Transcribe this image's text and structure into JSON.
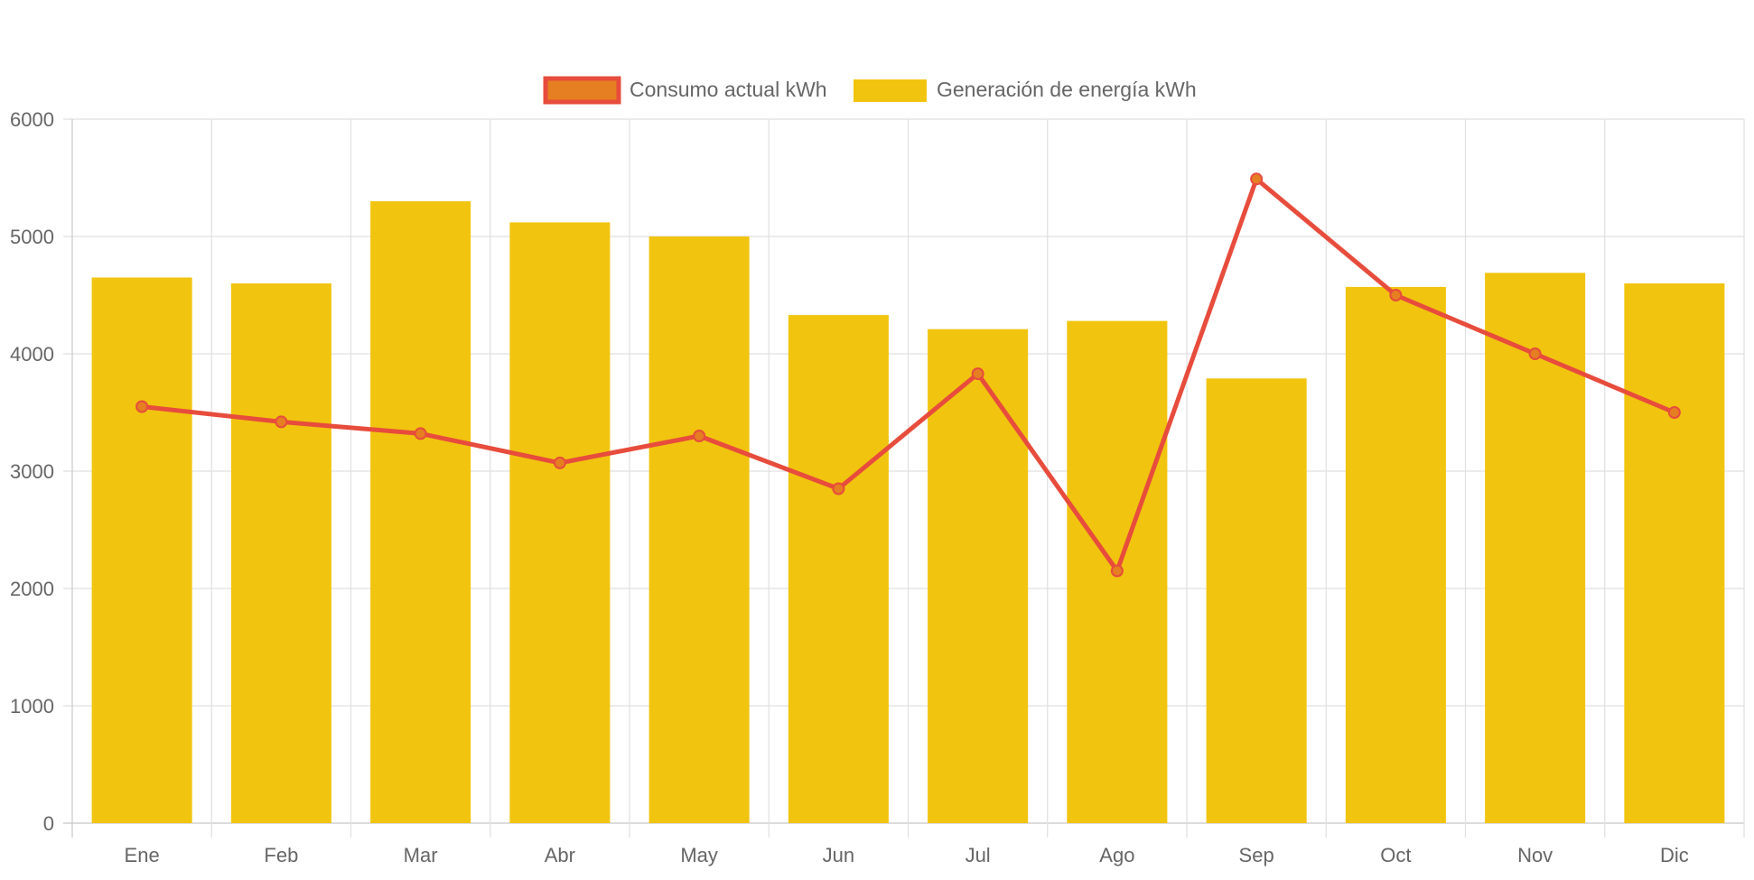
{
  "chart_data": {
    "type": "bar",
    "title": "",
    "xlabel": "",
    "ylabel": "",
    "categories": [
      "Ene",
      "Feb",
      "Mar",
      "Abr",
      "May",
      "Jun",
      "Jul",
      "Ago",
      "Sep",
      "Oct",
      "Nov",
      "Dic"
    ],
    "ylim": [
      0,
      6000
    ],
    "yticks": [
      "0",
      "1000",
      "2000",
      "3000",
      "4000",
      "5000",
      "6000"
    ],
    "grid": true,
    "legend_position": "top",
    "series": [
      {
        "name": "Consumo actual kWh",
        "type": "line",
        "color": "#e74c3c",
        "point_color": "#e67e22",
        "values": [
          3550,
          3420,
          3320,
          3070,
          3300,
          2850,
          3830,
          2150,
          5490,
          4500,
          4000,
          3500
        ]
      },
      {
        "name": "Generación de energía kWh",
        "type": "bar",
        "color": "#f1c40f",
        "values": [
          4650,
          4600,
          5300,
          5120,
          5000,
          4330,
          4210,
          4280,
          3790,
          4570,
          4690,
          4600
        ]
      }
    ]
  }
}
